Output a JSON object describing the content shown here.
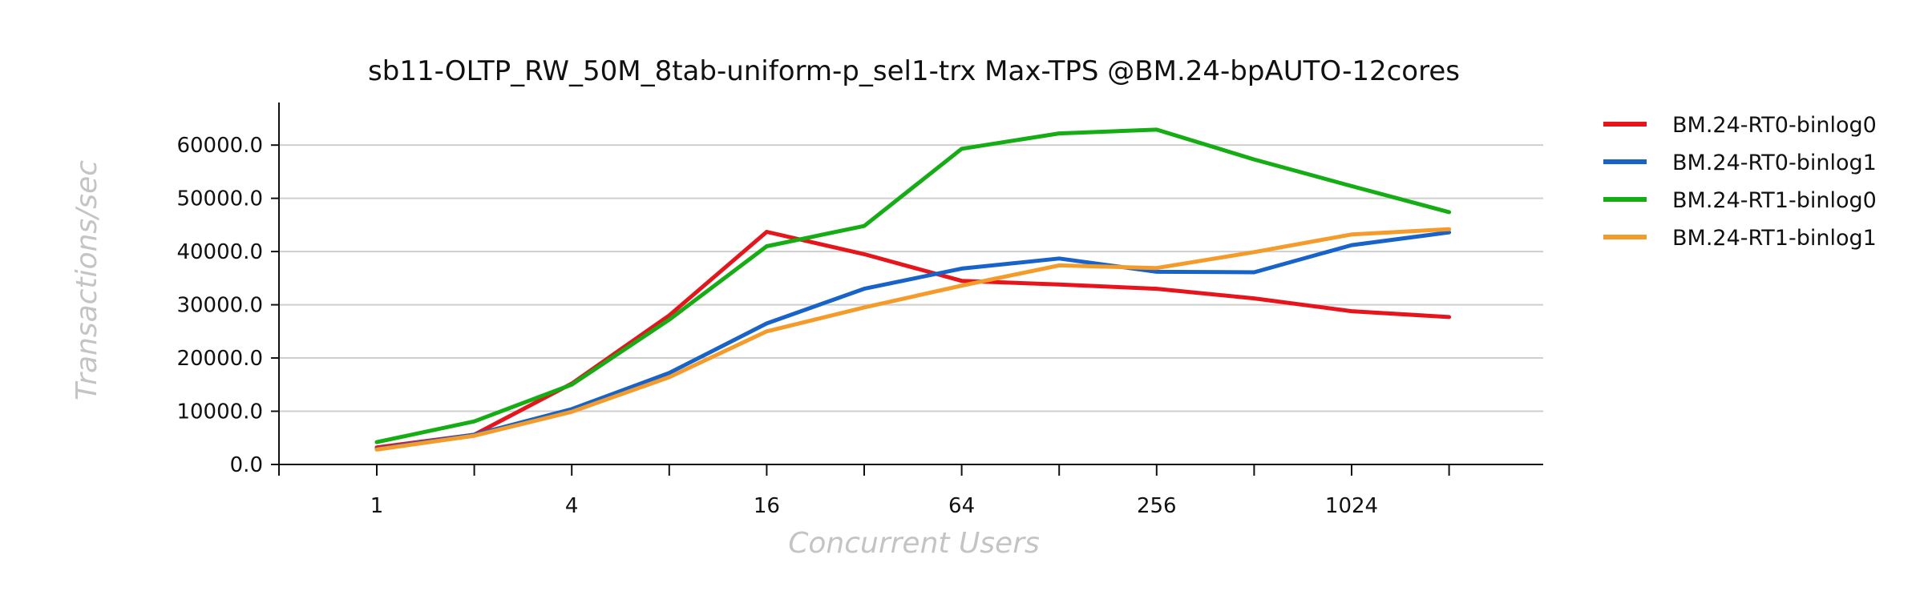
{
  "chart_data": {
    "type": "line",
    "title": "sb11-OLTP_RW_50M_8tab-uniform-p_sel1-trx Max-TPS @BM.24-bpAUTO-12cores",
    "xlabel": "Concurrent Users",
    "ylabel": "Transactions/sec",
    "x": [
      1,
      2,
      4,
      8,
      16,
      32,
      64,
      128,
      256,
      512,
      1024,
      2048
    ],
    "x_scale": "log2",
    "x_tick_labels": [
      "1",
      "4",
      "16",
      "64",
      "256",
      "1024"
    ],
    "y_tick_labels": [
      "0.0",
      "10000.0",
      "20000.0",
      "30000.0",
      "40000.0",
      "50000.0",
      "60000.0"
    ],
    "ylim": [
      0,
      68000
    ],
    "grid": "horizontal",
    "legend_position": "right",
    "series": [
      {
        "name": "BM.24-RT0-binlog0",
        "color": "#e8141b",
        "values": [
          3200,
          5600,
          15200,
          28000,
          43700,
          39500,
          34500,
          33800,
          33000,
          31200,
          28800,
          27700
        ]
      },
      {
        "name": "BM.24-RT0-binlog1",
        "color": "#1763c9",
        "values": [
          2900,
          5600,
          10400,
          17200,
          26500,
          33000,
          36800,
          38700,
          36200,
          36100,
          41200,
          43600
        ]
      },
      {
        "name": "BM.24-RT1-binlog0",
        "color": "#14ad14",
        "values": [
          4200,
          8100,
          15000,
          27200,
          41000,
          44800,
          59300,
          62200,
          62900,
          57300,
          52300,
          47400
        ]
      },
      {
        "name": "BM.24-RT1-binlog1",
        "color": "#f59b2a",
        "values": [
          2800,
          5400,
          9900,
          16400,
          25000,
          29500,
          33600,
          37400,
          36900,
          39900,
          43200,
          44200
        ]
      }
    ]
  }
}
